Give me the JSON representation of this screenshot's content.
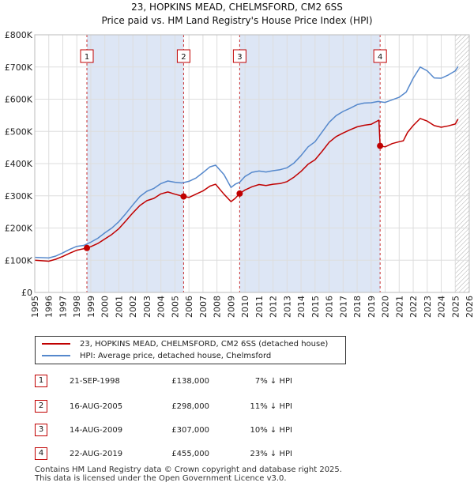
{
  "title_line_1": "23, HOPKINS MEAD, CHELMSFORD, CM2 6SS",
  "title_line_2": "Price paid vs. HM Land Registry's House Price Index (HPI)",
  "colors": {
    "property": "#c00000",
    "hpi": "#5588cc",
    "band": "#dde6f5",
    "grid": "#dddddd"
  },
  "chart_data": {
    "type": "line",
    "xlim": [
      1995,
      2026
    ],
    "ylim": [
      0,
      800000
    ],
    "x_ticks": [
      1995,
      1996,
      1997,
      1998,
      1999,
      2000,
      2001,
      2002,
      2003,
      2004,
      2005,
      2006,
      2007,
      2008,
      2009,
      2010,
      2011,
      2012,
      2013,
      2014,
      2015,
      2016,
      2017,
      2018,
      2019,
      2020,
      2021,
      2022,
      2023,
      2024,
      2025,
      2026
    ],
    "y_ticks": [
      0,
      100000,
      200000,
      300000,
      400000,
      500000,
      600000,
      700000,
      800000
    ],
    "y_tick_labels": [
      "£0",
      "£100K",
      "£200K",
      "£300K",
      "£400K",
      "£500K",
      "£600K",
      "£700K",
      "£800K"
    ],
    "bands": [
      [
        1998.72,
        2005.62
      ],
      [
        2009.62,
        2019.64
      ]
    ],
    "hatch_from": 2025.0,
    "series": [
      {
        "name": "23, HOPKINS MEAD, CHELMSFORD, CM2 6SS (detached house)",
        "x": [
          1995,
          1996,
          1996.5,
          1997,
          1997.5,
          1998,
          1998.72,
          1999,
          1999.5,
          2000,
          2000.5,
          2001,
          2001.5,
          2002,
          2002.5,
          2003,
          2003.5,
          2004,
          2004.5,
          2005,
          2005.62,
          2006,
          2006.5,
          2007,
          2007.5,
          2007.9,
          2008.5,
          2009,
          2009.3,
          2009.62,
          2010,
          2010.5,
          2011,
          2011.5,
          2012,
          2012.5,
          2013,
          2013.5,
          2014,
          2014.5,
          2015,
          2015.5,
          2016,
          2016.5,
          2017,
          2017.5,
          2018,
          2018.5,
          2019,
          2019.55,
          2019.64,
          2020,
          2020.5,
          2021,
          2021.3,
          2021.6,
          2022,
          2022.5,
          2023,
          2023.5,
          2024,
          2024.5,
          2025,
          2025.2
        ],
        "values": [
          100000,
          97000,
          103000,
          112000,
          122000,
          131000,
          138000,
          142000,
          152000,
          166000,
          180000,
          198000,
          222000,
          247000,
          270000,
          285000,
          292000,
          306000,
          312000,
          305000,
          298000,
          295000,
          305000,
          315000,
          330000,
          336000,
          305000,
          282000,
          292000,
          307000,
          318000,
          328000,
          335000,
          332000,
          336000,
          338000,
          344000,
          358000,
          376000,
          398000,
          412000,
          438000,
          466000,
          484000,
          495000,
          505000,
          514000,
          519000,
          522000,
          535000,
          455000,
          452000,
          462000,
          468000,
          471000,
          497000,
          518000,
          540000,
          532000,
          518000,
          513000,
          517000,
          523000,
          538000
        ]
      },
      {
        "name": "HPI: Average price, detached house, Chelmsford",
        "x": [
          1995,
          1996,
          1996.5,
          1997,
          1997.5,
          1998,
          1998.5,
          1999,
          1999.5,
          2000,
          2000.5,
          2001,
          2001.5,
          2002,
          2002.5,
          2003,
          2003.5,
          2004,
          2004.5,
          2005,
          2005.5,
          2006,
          2006.5,
          2007,
          2007.5,
          2007.9,
          2008.5,
          2009,
          2009.3,
          2009.62,
          2010,
          2010.5,
          2011,
          2011.5,
          2012,
          2012.5,
          2013,
          2013.5,
          2014,
          2014.5,
          2015,
          2015.5,
          2016,
          2016.5,
          2017,
          2017.5,
          2018,
          2018.5,
          2019,
          2019.5,
          2020,
          2020.5,
          2021,
          2021.5,
          2022,
          2022.5,
          2023,
          2023.5,
          2024,
          2024.5,
          2025,
          2025.2
        ],
        "values": [
          109000,
          107000,
          113000,
          123000,
          134000,
          143000,
          146000,
          156000,
          168000,
          185000,
          200000,
          220000,
          245000,
          272000,
          298000,
          314000,
          323000,
          338000,
          346000,
          342000,
          340000,
          345000,
          355000,
          372000,
          390000,
          395000,
          366000,
          326000,
          336000,
          342000,
          360000,
          373000,
          377000,
          374000,
          378000,
          381000,
          387000,
          402000,
          425000,
          452000,
          468000,
          498000,
          528000,
          549000,
          562000,
          572000,
          583000,
          588000,
          589000,
          593000,
          590000,
          598000,
          606000,
          622000,
          665000,
          700000,
          688000,
          666000,
          665000,
          675000,
          688000,
          701000
        ]
      }
    ],
    "sales": [
      {
        "label": "1",
        "x": 1998.72,
        "date": "21-SEP-1998",
        "price": 138000,
        "price_label": "£138,000",
        "hpi_label": "7% ↓ HPI"
      },
      {
        "label": "2",
        "x": 2005.62,
        "date": "16-AUG-2005",
        "price": 298000,
        "price_label": "£298,000",
        "hpi_label": "11% ↓ HPI"
      },
      {
        "label": "3",
        "x": 2009.62,
        "date": "14-AUG-2009",
        "price": 307000,
        "price_label": "£307,000",
        "hpi_label": "10% ↓ HPI"
      },
      {
        "label": "4",
        "x": 2019.64,
        "date": "22-AUG-2019",
        "price": 455000,
        "price_label": "£455,000",
        "hpi_label": "23% ↓ HPI"
      }
    ]
  },
  "legend": {
    "property_label": "23, HOPKINS MEAD, CHELMSFORD, CM2 6SS (detached house)",
    "hpi_label": "HPI: Average price, detached house, Chelmsford"
  },
  "footer_line_1": "Contains HM Land Registry data © Crown copyright and database right 2025.",
  "footer_line_2": "This data is licensed under the Open Government Licence v3.0."
}
